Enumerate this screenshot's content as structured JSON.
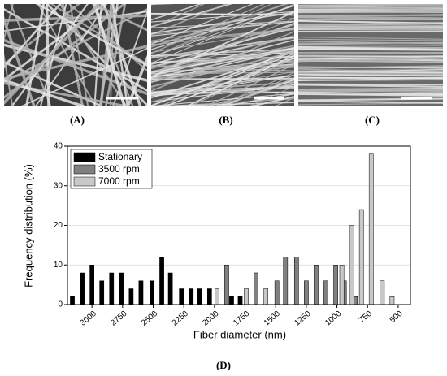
{
  "panels": [
    "(A)",
    "(B)",
    "(C)"
  ],
  "chart_label": "(D)",
  "chart_data": {
    "type": "bar",
    "x_label": "Fiber diameter (nm)",
    "y_label": "Frequency distribution (%)",
    "xlim": [
      3200,
      400
    ],
    "xticks": [
      3000,
      2750,
      2500,
      2250,
      2000,
      1750,
      1500,
      1250,
      1000,
      750,
      500
    ],
    "ylim": [
      0,
      40
    ],
    "yticks": [
      0,
      10,
      20,
      30,
      40
    ],
    "grid": true,
    "legend": "upper left",
    "series": [
      {
        "name": "Stationary",
        "color": "#000000",
        "x": [
          3160,
          3080,
          3000,
          2920,
          2840,
          2760,
          2680,
          2600,
          2510,
          2430,
          2360,
          2270,
          2190,
          2120,
          2040,
          1860,
          1790
        ],
        "values": [
          2,
          8,
          10,
          6,
          8,
          8,
          4,
          6,
          6,
          12,
          8,
          4,
          4,
          4,
          4,
          2,
          2
        ]
      },
      {
        "name": "3500 rpm",
        "color": "#808080",
        "x": [
          1900,
          1660,
          1490,
          1420,
          1330,
          1250,
          1170,
          1090,
          1010,
          940,
          850
        ],
        "values": [
          10,
          8,
          6,
          12,
          12,
          6,
          10,
          6,
          10,
          6,
          2
        ]
      },
      {
        "name": "7000 rpm",
        "color": "#c8c8c8",
        "x": [
          1980,
          1740,
          1580,
          960,
          880,
          800,
          720,
          630,
          550
        ],
        "values": [
          4,
          4,
          4,
          10,
          20,
          24,
          38,
          6,
          2
        ]
      }
    ]
  }
}
